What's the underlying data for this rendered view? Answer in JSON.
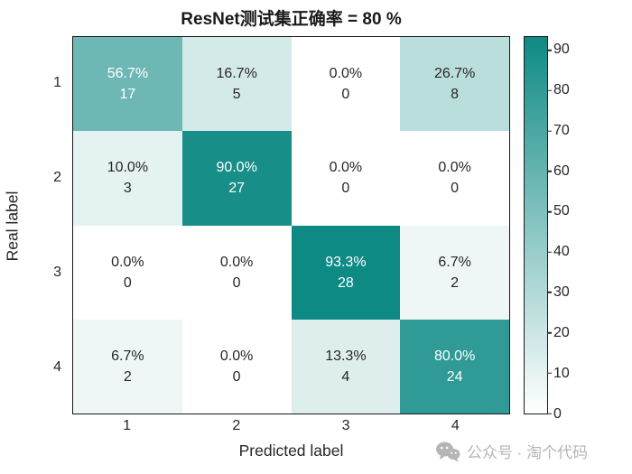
{
  "chart_data": {
    "type": "heatmap",
    "title": "ResNet测试集正确率 = 80 %",
    "xlabel": "Predicted label",
    "ylabel": "Real label",
    "x_ticks": [
      "1",
      "2",
      "3",
      "4"
    ],
    "y_ticks": [
      "1",
      "2",
      "3",
      "4"
    ],
    "color_axis": {
      "min": 0,
      "max": 93.3,
      "ticks": [
        0,
        10,
        20,
        30,
        40,
        50,
        60,
        70,
        80,
        90
      ],
      "low_color": "#ffffff",
      "high_color": "#0e8a84",
      "legend_position": "right"
    },
    "grid": "off",
    "rows": [
      [
        {
          "percent": 56.7,
          "percent_label": "56.7%",
          "count": "17"
        },
        {
          "percent": 16.7,
          "percent_label": "16.7%",
          "count": "5"
        },
        {
          "percent": 0.0,
          "percent_label": "0.0%",
          "count": "0"
        },
        {
          "percent": 26.7,
          "percent_label": "26.7%",
          "count": "8"
        }
      ],
      [
        {
          "percent": 10.0,
          "percent_label": "10.0%",
          "count": "3"
        },
        {
          "percent": 90.0,
          "percent_label": "90.0%",
          "count": "27"
        },
        {
          "percent": 0.0,
          "percent_label": "0.0%",
          "count": "0"
        },
        {
          "percent": 0.0,
          "percent_label": "0.0%",
          "count": "0"
        }
      ],
      [
        {
          "percent": 0.0,
          "percent_label": "0.0%",
          "count": "0"
        },
        {
          "percent": 0.0,
          "percent_label": "0.0%",
          "count": "0"
        },
        {
          "percent": 93.3,
          "percent_label": "93.3%",
          "count": "28"
        },
        {
          "percent": 6.7,
          "percent_label": "6.7%",
          "count": "2"
        }
      ],
      [
        {
          "percent": 6.7,
          "percent_label": "6.7%",
          "count": "2"
        },
        {
          "percent": 0.0,
          "percent_label": "0.0%",
          "count": "0"
        },
        {
          "percent": 13.3,
          "percent_label": "13.3%",
          "count": "4"
        },
        {
          "percent": 80.0,
          "percent_label": "80.0%",
          "count": "24"
        }
      ]
    ],
    "cell_text_dark_color": "#262626",
    "cell_text_light_color": "#ffffff",
    "light_text_threshold": 50
  },
  "watermark": {
    "icon": "wechat-icon",
    "text": "公众号 · 淘个代码",
    "color": "#b5b5b5"
  }
}
